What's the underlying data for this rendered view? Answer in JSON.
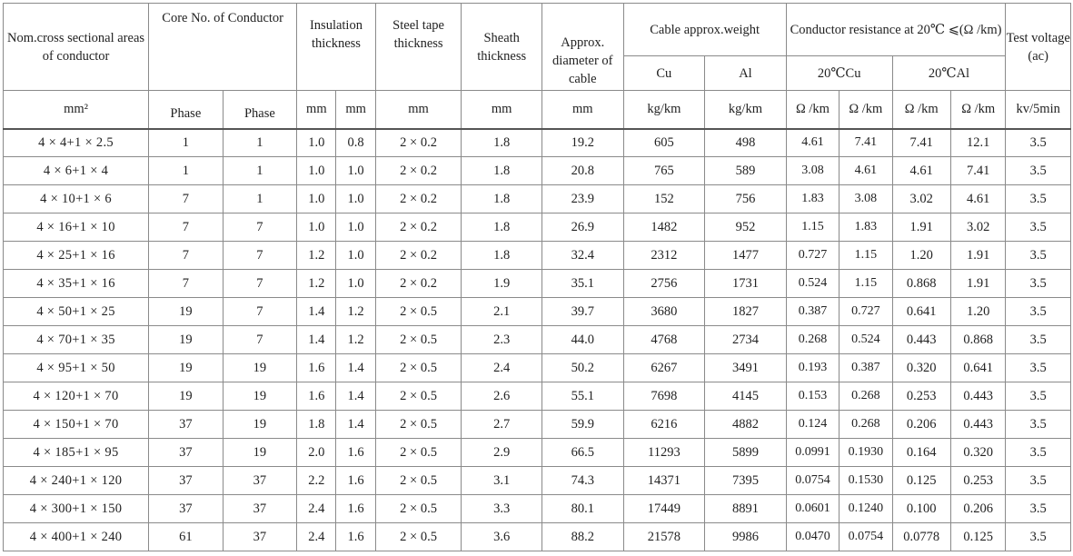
{
  "headers": {
    "nom_cross": "Nom.cross sectional areas of conductor",
    "core_no": "Core No. of Conductor",
    "insulation": "Insulation thickness",
    "steel_tape": "Steel tape thickness",
    "sheath": "Sheath thickness",
    "diameter": "Approx. diameter of cable",
    "weight": "Cable approx.weight",
    "resistance": "Conductor resistance at 20℃ ⩽(Ω /km)",
    "test_voltage": "Test voltage (ac)",
    "cu": "Cu",
    "al": "Al",
    "res_cu": "20℃Cu",
    "res_al": "20℃Al"
  },
  "units": [
    "mm²",
    "Phase",
    "Phase",
    "mm",
    "mm",
    "mm",
    "mm",
    "mm",
    "kg/km",
    "kg/km",
    "Ω /km",
    "Ω /km",
    "Ω /km",
    "Ω /km",
    "kv/5min"
  ],
  "rows": [
    [
      "4 × 4+1 × 2.5",
      "1",
      "1",
      "1.0",
      "0.8",
      "2 × 0.2",
      "1.8",
      "19.2",
      "605",
      "498",
      "4.61",
      "7.41",
      "7.41",
      "12.1",
      "3.5"
    ],
    [
      "4 × 6+1 × 4",
      "1",
      "1",
      "1.0",
      "1.0",
      "2 × 0.2",
      "1.8",
      "20.8",
      "765",
      "589",
      "3.08",
      "4.61",
      "4.61",
      "7.41",
      "3.5"
    ],
    [
      "4 × 10+1 × 6",
      "7",
      "1",
      "1.0",
      "1.0",
      "2 × 0.2",
      "1.8",
      "23.9",
      "152",
      "756",
      "1.83",
      "3.08",
      "3.02",
      "4.61",
      "3.5"
    ],
    [
      "4 × 16+1 × 10",
      "7",
      "7",
      "1.0",
      "1.0",
      "2 × 0.2",
      "1.8",
      "26.9",
      "1482",
      "952",
      "1.15",
      "1.83",
      "1.91",
      "3.02",
      "3.5"
    ],
    [
      "4 × 25+1 × 16",
      "7",
      "7",
      "1.2",
      "1.0",
      "2 × 0.2",
      "1.8",
      "32.4",
      "2312",
      "1477",
      "0.727",
      "1.15",
      "1.20",
      "1.91",
      "3.5"
    ],
    [
      "4 × 35+1 × 16",
      "7",
      "7",
      "1.2",
      "1.0",
      "2 × 0.2",
      "1.9",
      "35.1",
      "2756",
      "1731",
      "0.524",
      "1.15",
      "0.868",
      "1.91",
      "3.5"
    ],
    [
      "4 × 50+1 × 25",
      "19",
      "7",
      "1.4",
      "1.2",
      "2 × 0.5",
      "2.1",
      "39.7",
      "3680",
      "1827",
      "0.387",
      "0.727",
      "0.641",
      "1.20",
      "3.5"
    ],
    [
      "4 × 70+1 × 35",
      "19",
      "7",
      "1.4",
      "1.2",
      "2 × 0.5",
      "2.3",
      "44.0",
      "4768",
      "2734",
      "0.268",
      "0.524",
      "0.443",
      "0.868",
      "3.5"
    ],
    [
      "4 × 95+1 × 50",
      "19",
      "19",
      "1.6",
      "1.4",
      "2 × 0.5",
      "2.4",
      "50.2",
      "6267",
      "3491",
      "0.193",
      "0.387",
      "0.320",
      "0.641",
      "3.5"
    ],
    [
      "4 × 120+1 × 70",
      "19",
      "19",
      "1.6",
      "1.4",
      "2 × 0.5",
      "2.6",
      "55.1",
      "7698",
      "4145",
      "0.153",
      "0.268",
      "0.253",
      "0.443",
      "3.5"
    ],
    [
      "4 × 150+1 × 70",
      "37",
      "19",
      "1.8",
      "1.4",
      "2 × 0.5",
      "2.7",
      "59.9",
      "6216",
      "4882",
      "0.124",
      "0.268",
      "0.206",
      "0.443",
      "3.5"
    ],
    [
      "4 × 185+1 × 95",
      "37",
      "19",
      "2.0",
      "1.6",
      "2 × 0.5",
      "2.9",
      "66.5",
      "11293",
      "5899",
      "0.0991",
      "0.1930",
      "0.164",
      "0.320",
      "3.5"
    ],
    [
      "4 × 240+1 × 120",
      "37",
      "37",
      "2.2",
      "1.6",
      "2 × 0.5",
      "3.1",
      "74.3",
      "14371",
      "7395",
      "0.0754",
      "0.1530",
      "0.125",
      "0.253",
      "3.5"
    ],
    [
      "4 × 300+1 × 150",
      "37",
      "37",
      "2.4",
      "1.6",
      "2 × 0.5",
      "3.3",
      "80.1",
      "17449",
      "8891",
      "0.0601",
      "0.1240",
      "0.100",
      "0.206",
      "3.5"
    ],
    [
      "4 × 400+1 × 240",
      "61",
      "37",
      "2.4",
      "1.6",
      "2 × 0.5",
      "3.6",
      "88.2",
      "21578",
      "9986",
      "0.0470",
      "0.0754",
      "0.0778",
      "0.125",
      "3.5"
    ]
  ]
}
